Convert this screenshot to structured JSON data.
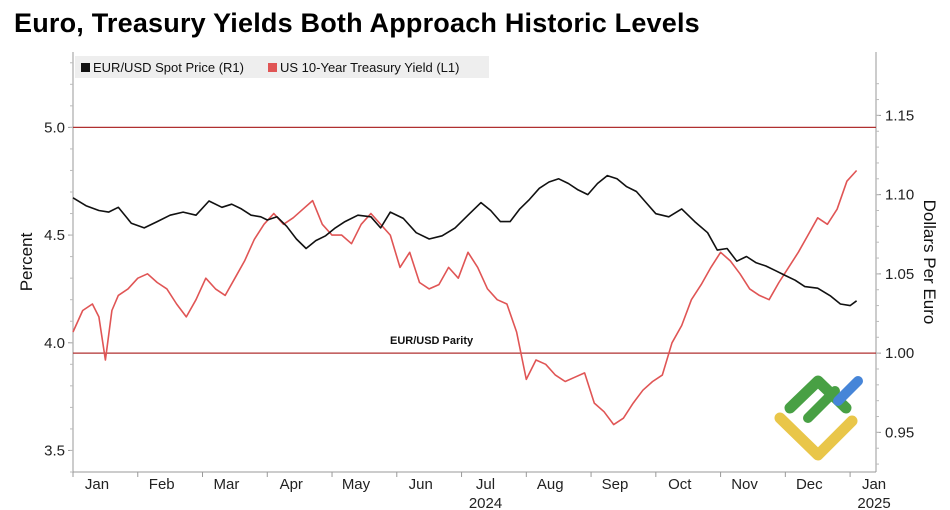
{
  "title": "Euro, Treasury Yields Both Approach Historic Levels",
  "legend": [
    {
      "label": "EUR/USD Spot Price (R1)",
      "color": "#111111"
    },
    {
      "label": "US 10-Year Treasury Yield (L1)",
      "color": "#e05555"
    }
  ],
  "colors": {
    "grid_line": "#b03030",
    "eur": "#111111",
    "yield": "#e05555"
  },
  "parity_label": "EUR/USD Parity",
  "chart_data": {
    "type": "line",
    "title": "Euro, Treasury Yields Both Approach Historic Levels",
    "xlabel": "",
    "ylabel_left": "Percent",
    "ylabel_right": "Dollars Per Euro",
    "x_range": [
      0,
      12.4
    ],
    "ylim_left": [
      3.4,
      5.35
    ],
    "ylim_right": [
      0.925,
      1.19
    ],
    "left_ticks": [
      "3.5",
      "4.0",
      "4.5",
      "5.0"
    ],
    "right_ticks": [
      "0.95",
      "1.00",
      "1.05",
      "1.10",
      "1.15"
    ],
    "month_labels": [
      "Jan",
      "Feb",
      "Mar",
      "Apr",
      "May",
      "Jun",
      "Jul",
      "Aug",
      "Sep",
      "Oct",
      "Nov",
      "Dec",
      "Jan"
    ],
    "year_labels": [
      {
        "text": "2024",
        "month_index": 6
      },
      {
        "text": "2025",
        "month_index": 12
      }
    ],
    "reference_lines": [
      {
        "axis": "left",
        "value": 5.0,
        "label": ""
      },
      {
        "axis": "right",
        "value": 1.0,
        "label": "EUR/USD Parity"
      }
    ],
    "series": [
      {
        "name": "EUR/USD Spot Price (R1)",
        "axis": "right",
        "x": [
          0.0,
          0.2,
          0.4,
          0.55,
          0.7,
          0.9,
          1.1,
          1.3,
          1.5,
          1.7,
          1.9,
          2.1,
          2.3,
          2.45,
          2.6,
          2.75,
          2.9,
          3.0,
          3.15,
          3.3,
          3.45,
          3.6,
          3.75,
          3.9,
          4.05,
          4.2,
          4.4,
          4.6,
          4.75,
          4.9,
          5.1,
          5.3,
          5.5,
          5.7,
          5.9,
          6.1,
          6.3,
          6.45,
          6.6,
          6.75,
          6.9,
          7.05,
          7.2,
          7.35,
          7.5,
          7.65,
          7.8,
          7.95,
          8.1,
          8.25,
          8.4,
          8.55,
          8.7,
          8.85,
          9.0,
          9.2,
          9.4,
          9.6,
          9.8,
          9.95,
          10.1,
          10.25,
          10.4,
          10.55,
          10.7,
          10.85,
          11.0,
          11.15,
          11.3,
          11.5,
          11.7,
          11.85,
          12.0,
          12.1
        ],
        "values": [
          1.098,
          1.093,
          1.09,
          1.089,
          1.092,
          1.082,
          1.079,
          1.083,
          1.087,
          1.089,
          1.087,
          1.096,
          1.092,
          1.094,
          1.091,
          1.087,
          1.086,
          1.084,
          1.086,
          1.08,
          1.072,
          1.066,
          1.071,
          1.074,
          1.079,
          1.083,
          1.087,
          1.086,
          1.079,
          1.089,
          1.085,
          1.076,
          1.072,
          1.074,
          1.079,
          1.087,
          1.095,
          1.09,
          1.083,
          1.083,
          1.091,
          1.097,
          1.104,
          1.108,
          1.11,
          1.107,
          1.103,
          1.1,
          1.107,
          1.112,
          1.11,
          1.105,
          1.102,
          1.095,
          1.088,
          1.086,
          1.091,
          1.083,
          1.076,
          1.065,
          1.066,
          1.058,
          1.061,
          1.057,
          1.055,
          1.052,
          1.049,
          1.046,
          1.042,
          1.041,
          1.036,
          1.031,
          1.03,
          1.033
        ]
      },
      {
        "name": "US 10-Year Treasury Yield (L1)",
        "axis": "left",
        "x": [
          0.0,
          0.15,
          0.3,
          0.4,
          0.5,
          0.6,
          0.7,
          0.85,
          1.0,
          1.15,
          1.3,
          1.45,
          1.6,
          1.75,
          1.9,
          2.05,
          2.2,
          2.35,
          2.5,
          2.65,
          2.8,
          2.95,
          3.1,
          3.25,
          3.4,
          3.55,
          3.7,
          3.85,
          4.0,
          4.15,
          4.3,
          4.45,
          4.6,
          4.75,
          4.9,
          5.05,
          5.2,
          5.35,
          5.5,
          5.65,
          5.8,
          5.95,
          6.1,
          6.25,
          6.4,
          6.55,
          6.7,
          6.85,
          7.0,
          7.15,
          7.3,
          7.45,
          7.6,
          7.75,
          7.9,
          8.05,
          8.2,
          8.35,
          8.5,
          8.65,
          8.8,
          8.95,
          9.1,
          9.25,
          9.4,
          9.55,
          9.7,
          9.85,
          10.0,
          10.15,
          10.3,
          10.45,
          10.6,
          10.75,
          10.9,
          11.05,
          11.2,
          11.35,
          11.5,
          11.65,
          11.8,
          11.95,
          12.1
        ],
        "values": [
          4.05,
          4.15,
          4.18,
          4.12,
          3.92,
          4.15,
          4.22,
          4.25,
          4.3,
          4.32,
          4.28,
          4.25,
          4.18,
          4.12,
          4.2,
          4.3,
          4.25,
          4.22,
          4.3,
          4.38,
          4.48,
          4.55,
          4.6,
          4.55,
          4.58,
          4.62,
          4.66,
          4.55,
          4.5,
          4.5,
          4.46,
          4.55,
          4.6,
          4.55,
          4.5,
          4.35,
          4.42,
          4.28,
          4.25,
          4.27,
          4.35,
          4.3,
          4.42,
          4.35,
          4.25,
          4.2,
          4.18,
          4.05,
          3.83,
          3.92,
          3.9,
          3.85,
          3.82,
          3.84,
          3.86,
          3.72,
          3.68,
          3.62,
          3.65,
          3.72,
          3.78,
          3.82,
          3.85,
          4.0,
          4.08,
          4.2,
          4.27,
          4.35,
          4.42,
          4.38,
          4.32,
          4.25,
          4.22,
          4.2,
          4.28,
          4.35,
          4.42,
          4.5,
          4.58,
          4.55,
          4.62,
          4.75,
          4.8
        ]
      }
    ]
  },
  "watermark": {
    "icon": "logo-watermark-icon"
  }
}
